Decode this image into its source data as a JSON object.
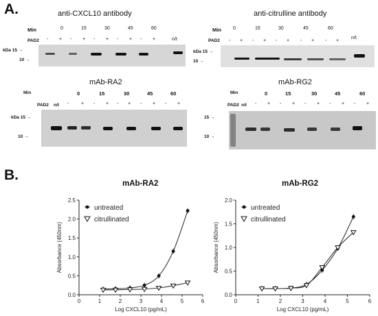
{
  "panel_a": {
    "letter": "A.",
    "blots": [
      {
        "title": "anti-CXCL10 antibody",
        "min_label": "Min",
        "pad_label": "PAD2",
        "times": [
          "0",
          "15",
          "30",
          "45",
          "60"
        ],
        "nt_label": "n/t",
        "kda_label": "kDa",
        "markers": [
          "15",
          "10"
        ]
      },
      {
        "title": "anti-citrulline antibody",
        "min_label": "Min",
        "pad_label": "PAD2",
        "times": [
          "0",
          "15",
          "30",
          "45",
          "60"
        ],
        "nt_label": "n/t",
        "kda_label": "kDa",
        "markers": [
          "15",
          "10"
        ]
      },
      {
        "title": "mAb-RA2",
        "min_label": "Min",
        "pad_label": "PAD2",
        "times": [
          "0",
          "15",
          "30",
          "45",
          "60"
        ],
        "nt_label": "n/t",
        "kda_label": "kDa",
        "markers": [
          "15",
          "10"
        ]
      },
      {
        "title": "mAb-RG2",
        "min_label": "Min",
        "pad_label": "PAD2",
        "times": [
          "0",
          "15",
          "30",
          "45",
          "60"
        ],
        "nt_label": "n/t",
        "kda_label": "kDa",
        "markers": [
          "15",
          "10"
        ]
      }
    ],
    "sign_minus": "-",
    "sign_plus": "+"
  },
  "panel_b": {
    "letter": "B."
  },
  "chart_data": [
    {
      "type": "line",
      "title": "mAb-RA2",
      "xlabel": "Log CXCL10 (pg/mL)",
      "ylabel": "Absorbance (450nm)",
      "xlim": [
        0,
        6
      ],
      "ylim": [
        0,
        2.5
      ],
      "xticks": [
        "0",
        "1",
        "2",
        "3",
        "4",
        "5",
        "6"
      ],
      "yticks": [
        "0.0",
        "0.5",
        "1.0",
        "1.5",
        "2.0",
        "2.5"
      ],
      "legend_position": "top-left",
      "series": [
        {
          "name": "untreated",
          "marker": "filled-circle",
          "x": [
            1.17,
            1.77,
            2.47,
            3.17,
            3.87,
            4.57,
            5.27
          ],
          "y": [
            0.15,
            0.16,
            0.18,
            0.25,
            0.5,
            1.15,
            2.22
          ]
        },
        {
          "name": "citrullinated",
          "marker": "open-triangle",
          "x": [
            1.17,
            1.77,
            2.47,
            3.17,
            3.87,
            4.57,
            5.27
          ],
          "y": [
            0.13,
            0.13,
            0.14,
            0.15,
            0.18,
            0.24,
            0.32
          ]
        }
      ]
    },
    {
      "type": "line",
      "title": "mAb-RG2",
      "xlabel": "Log CXCL10 (pg/mL)",
      "ylabel": "Absorbance (450nm)",
      "xlim": [
        0,
        6
      ],
      "ylim": [
        0,
        2.0
      ],
      "xticks": [
        "0",
        "1",
        "2",
        "3",
        "4",
        "5",
        "6"
      ],
      "yticks": [
        "0.0",
        "0.5",
        "1.0",
        "1.5",
        "2.0"
      ],
      "legend_position": "top-left",
      "series": [
        {
          "name": "untreated",
          "marker": "filled-circle",
          "x": [
            1.17,
            1.77,
            2.47,
            3.17,
            3.87,
            4.57,
            5.27
          ],
          "y": [
            0.13,
            0.13,
            0.14,
            0.22,
            0.52,
            0.98,
            1.65
          ]
        },
        {
          "name": "citrullinated",
          "marker": "open-triangle",
          "x": [
            1.17,
            1.77,
            2.47,
            3.17,
            3.87,
            4.57,
            5.27
          ],
          "y": [
            0.13,
            0.13,
            0.14,
            0.2,
            0.58,
            1.0,
            1.32
          ]
        }
      ]
    }
  ]
}
